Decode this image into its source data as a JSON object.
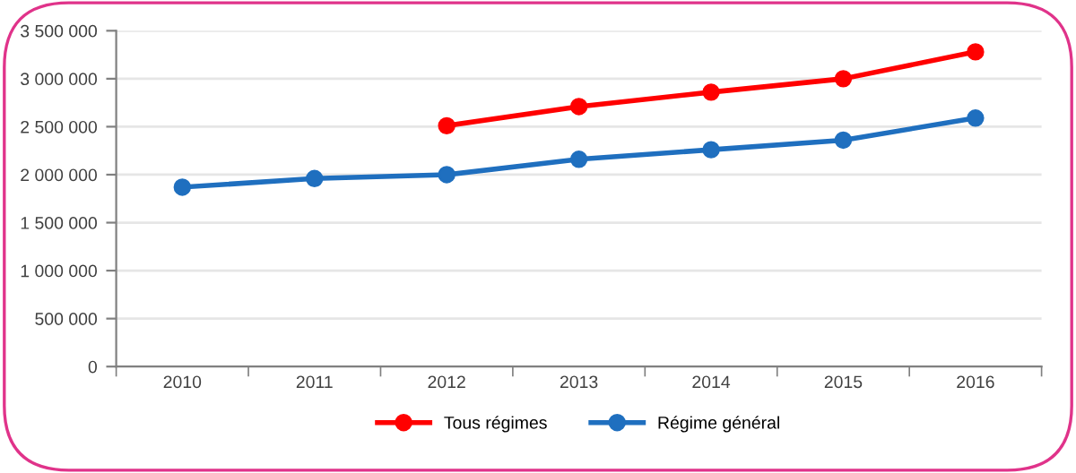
{
  "chart_data": {
    "type": "line",
    "categories": [
      "2010",
      "2011",
      "2012",
      "2013",
      "2014",
      "2015",
      "2016"
    ],
    "series": [
      {
        "name": "Tous régimes",
        "color": "#ff0000",
        "values": [
          null,
          null,
          2510000,
          2710000,
          2860000,
          3000000,
          3280000
        ]
      },
      {
        "name": "Régime général",
        "color": "#1f6fbf",
        "values": [
          1870000,
          1960000,
          2000000,
          2160000,
          2260000,
          2360000,
          2590000
        ]
      }
    ],
    "ylim": [
      0,
      3500000
    ],
    "yticks": [
      {
        "value": 0,
        "label": "0"
      },
      {
        "value": 500000,
        "label": "500 000"
      },
      {
        "value": 1000000,
        "label": "1 000 000"
      },
      {
        "value": 1500000,
        "label": "1 500 000"
      },
      {
        "value": 2000000,
        "label": "2 000 000"
      },
      {
        "value": 2500000,
        "label": "2 500 000"
      },
      {
        "value": 3000000,
        "label": "3 000 000"
      },
      {
        "value": 3500000,
        "label": "3 500 000"
      }
    ],
    "grid": "y",
    "legend": "bottom",
    "marker": "circle",
    "line_style": "solid"
  }
}
